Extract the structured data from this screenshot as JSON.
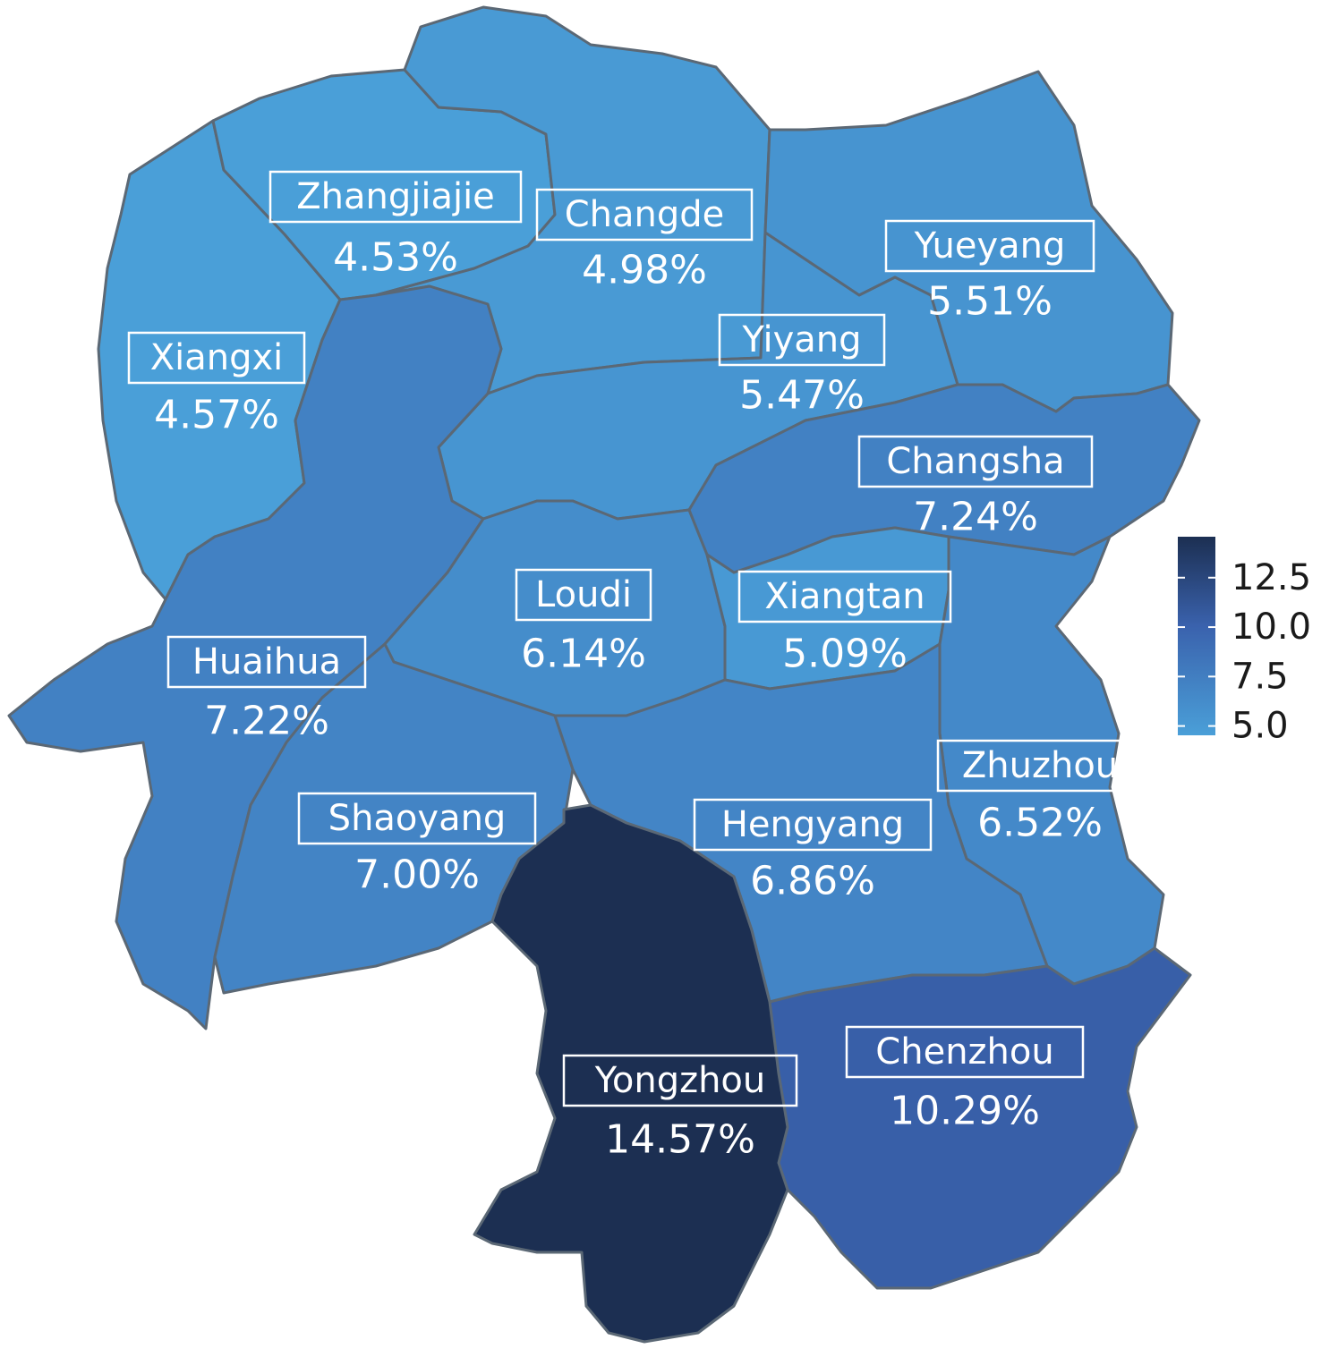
{
  "chart_data": {
    "type": "choropleth",
    "regions": [
      {
        "id": "zhangjiajie",
        "name": "Zhangjiajie",
        "value": 4.53,
        "label": "4.53%"
      },
      {
        "id": "changde",
        "name": "Changde",
        "value": 4.98,
        "label": "4.98%"
      },
      {
        "id": "yueyang",
        "name": "Yueyang",
        "value": 5.51,
        "label": "5.51%"
      },
      {
        "id": "xiangxi",
        "name": "Xiangxi",
        "value": 4.57,
        "label": "4.57%"
      },
      {
        "id": "yiyang",
        "name": "Yiyang",
        "value": 5.47,
        "label": "5.47%"
      },
      {
        "id": "changsha",
        "name": "Changsha",
        "value": 7.24,
        "label": "7.24%"
      },
      {
        "id": "loudi",
        "name": "Loudi",
        "value": 6.14,
        "label": "6.14%"
      },
      {
        "id": "xiangtan",
        "name": "Xiangtan",
        "value": 5.09,
        "label": "5.09%"
      },
      {
        "id": "huaihua",
        "name": "Huaihua",
        "value": 7.22,
        "label": "7.22%"
      },
      {
        "id": "zhuzhou",
        "name": "Zhuzhou",
        "value": 6.52,
        "label": "6.52%"
      },
      {
        "id": "shaoyang",
        "name": "Shaoyang",
        "value": 7.0,
        "label": "7.00%"
      },
      {
        "id": "hengyang",
        "name": "Hengyang",
        "value": 6.86,
        "label": "6.86%"
      },
      {
        "id": "chenzhou",
        "name": "Chenzhou",
        "value": 10.29,
        "label": "10.29%"
      },
      {
        "id": "yongzhou",
        "name": "Yongzhou",
        "value": 14.57,
        "label": "14.57%"
      }
    ],
    "colorbar": {
      "min": 4.53,
      "max": 14.57,
      "ticks": [
        "12.5",
        "10.0",
        "7.5",
        "5.0"
      ],
      "tick_values": [
        12.5,
        10.0,
        7.5,
        5.0
      ],
      "color_low": "#4a9fd8",
      "color_mid": "#3a62ad",
      "color_high": "#1c2f52"
    },
    "colors": {
      "border": "#5b6875",
      "label_text": "#ffffff",
      "label_box_border": "#ffffff"
    }
  }
}
